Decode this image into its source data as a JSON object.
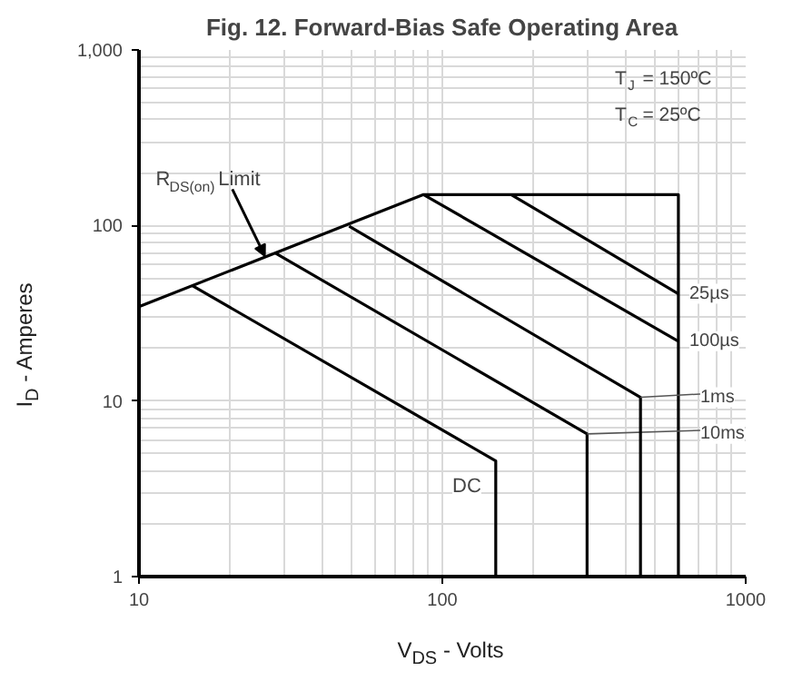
{
  "chart_data": {
    "type": "line",
    "title": "Fig. 12. Forward-Bias Safe Operating Area",
    "xlabel": "V$_{DS}$ - Volts",
    "ylabel": "I$_{D}$ - Amperes",
    "log": "xy",
    "grid": true,
    "marker": "none",
    "line_style": "solid",
    "xlim": [
      10,
      1000
    ],
    "ylim": [
      1,
      1000
    ],
    "xticks": [
      10,
      100,
      1000
    ],
    "yticks": [
      1,
      10,
      100,
      {
        "value": 1000,
        "label": "1,000"
      }
    ],
    "series": [
      {
        "color": "#000000",
        "x": [
          10,
          86.7,
          600,
          600
        ],
        "values": [
          34.5,
          150,
          150,
          1
        ]
      },
      {
        "name": "DC",
        "color": "#000000",
        "x": [
          15,
          150,
          150
        ],
        "values": [
          45.4,
          4.56,
          1
        ]
      },
      {
        "name": "10ms",
        "color": "#000000",
        "x": [
          28.2,
          300,
          300
        ],
        "values": [
          69.5,
          6.5,
          1
        ]
      },
      {
        "name": "1ms",
        "color": "#000000",
        "x": [
          49.3,
          450,
          450
        ],
        "values": [
          99,
          10.5,
          1
        ]
      },
      {
        "name": "100µs",
        "color": "#000000",
        "x": [
          86.7,
          600
        ],
        "values": [
          150,
          21.9
        ]
      },
      {
        "name": "25µs",
        "color": "#000000",
        "x": [
          168.6,
          600
        ],
        "values": [
          150,
          40.8
        ]
      }
    ],
    "annotations": [
      {
        "text": "R$_{DS(on)}$ Limit",
        "x": 26,
        "y": 67
      },
      "T$_{J}$ = 150ºC",
      "T$_{C}$ = 25ºC"
    ]
  }
}
